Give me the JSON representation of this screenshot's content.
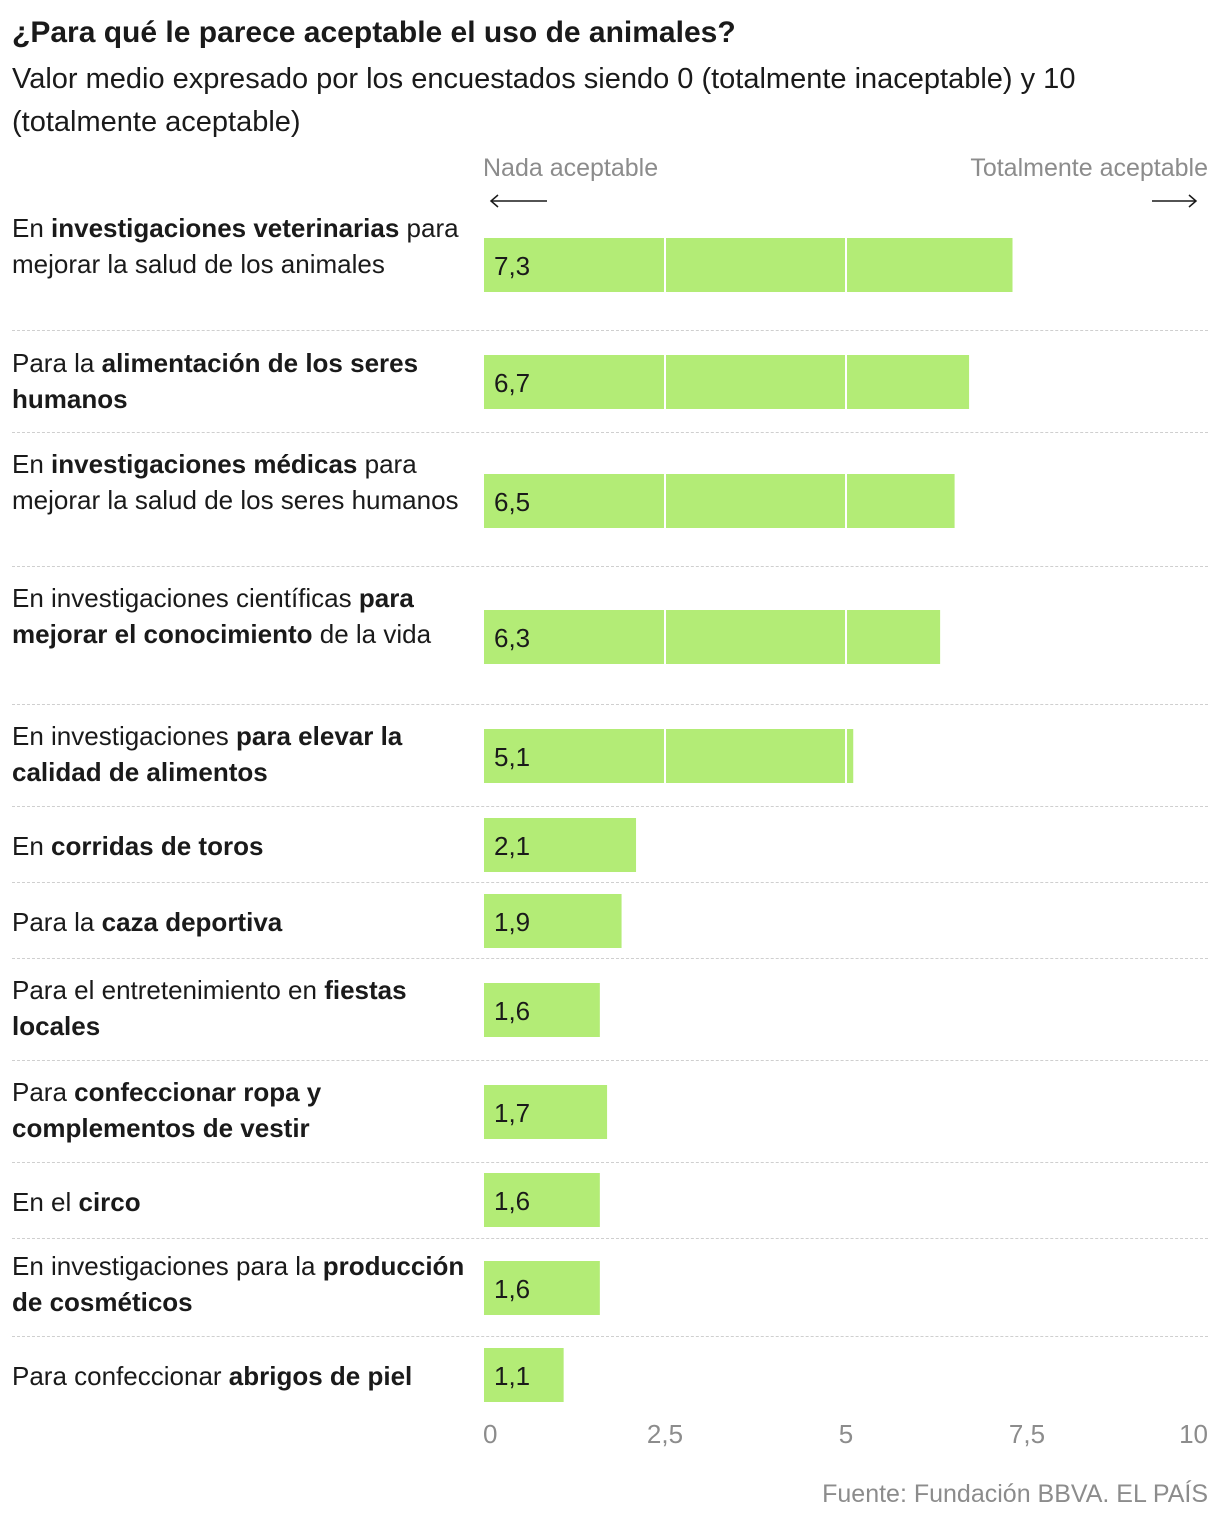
{
  "header": {
    "title": "¿Para qué le parece aceptable el uso de animales?",
    "subtitle": "Valor medio expresado por los encuestados siendo 0 (totalmente inaceptable) y 10 (totalmente aceptable)",
    "left_direction": "Nada aceptable",
    "right_direction": "Totalmente aceptable"
  },
  "source": "Fuente: Fundación BBVA. EL PAÍS",
  "colors": {
    "bar": "#b3ec76",
    "tick_text": "#8c8c8c",
    "separator": "#cfcfcf"
  },
  "rows": [
    {
      "parts": [
        [
          "En ",
          false
        ],
        [
          "investigaciones veterinarias",
          true
        ],
        [
          " para mejorar la salud de los animales",
          false
        ]
      ]
    },
    {
      "parts": [
        [
          "Para la ",
          false
        ],
        [
          "alimentación de los seres humanos",
          true
        ]
      ]
    },
    {
      "parts": [
        [
          "En ",
          false
        ],
        [
          "investigaciones médicas",
          true
        ],
        [
          " para mejorar la salud de los seres humanos",
          false
        ]
      ]
    },
    {
      "parts": [
        [
          "En investigaciones científicas ",
          false
        ],
        [
          "para mejorar el conocimiento",
          true
        ],
        [
          " de la vida",
          false
        ]
      ]
    },
    {
      "parts": [
        [
          "En investigaciones ",
          false
        ],
        [
          "para elevar la calidad de alimentos",
          true
        ]
      ]
    },
    {
      "parts": [
        [
          "En ",
          false
        ],
        [
          "corridas de toros",
          true
        ]
      ]
    },
    {
      "parts": [
        [
          "Para la ",
          false
        ],
        [
          "caza deportiva",
          true
        ]
      ]
    },
    {
      "parts": [
        [
          "Para el entretenimiento en ",
          false
        ],
        [
          "fiestas locales",
          true
        ]
      ]
    },
    {
      "parts": [
        [
          "Para ",
          false
        ],
        [
          "confeccionar ropa y complementos de vestir",
          true
        ]
      ]
    },
    {
      "parts": [
        [
          "En el ",
          false
        ],
        [
          "circo",
          true
        ]
      ]
    },
    {
      "parts": [
        [
          "En investigaciones para la ",
          false
        ],
        [
          "producción de cosméticos",
          true
        ]
      ]
    },
    {
      "parts": [
        [
          "Para confeccionar ",
          false
        ],
        [
          "abrigos de piel",
          true
        ]
      ]
    }
  ],
  "chart_data": {
    "type": "bar",
    "orientation": "horizontal",
    "categories": [
      "En investigaciones veterinarias para mejorar la salud de los animales",
      "Para la alimentación de los seres humanos",
      "En investigaciones médicas para mejorar la salud de los seres humanos",
      "En investigaciones científicas para mejorar el conocimiento de la vida",
      "En investigaciones para elevar la calidad de alimentos",
      "En corridas de toros",
      "Para la caza deportiva",
      "Para el entretenimiento en fiestas locales",
      "Para confeccionar ropa y complementos de vestir",
      "En el circo",
      "En investigaciones para la producción de cosméticos",
      "Para confeccionar abrigos de piel"
    ],
    "values": [
      7.3,
      6.7,
      6.5,
      6.3,
      5.1,
      2.1,
      1.9,
      1.6,
      1.7,
      1.6,
      1.6,
      1.1
    ],
    "value_labels": [
      "7,3",
      "6,7",
      "6,5",
      "6,3",
      "5,1",
      "2,1",
      "1,9",
      "1,6",
      "1,7",
      "1,6",
      "1,6",
      "1,1"
    ],
    "xlim": [
      0,
      10
    ],
    "xticks": [
      0,
      2.5,
      5,
      7.5,
      10
    ],
    "xtick_labels": [
      "0",
      "2,5",
      "5",
      "7,5",
      "10"
    ],
    "grid": true
  }
}
